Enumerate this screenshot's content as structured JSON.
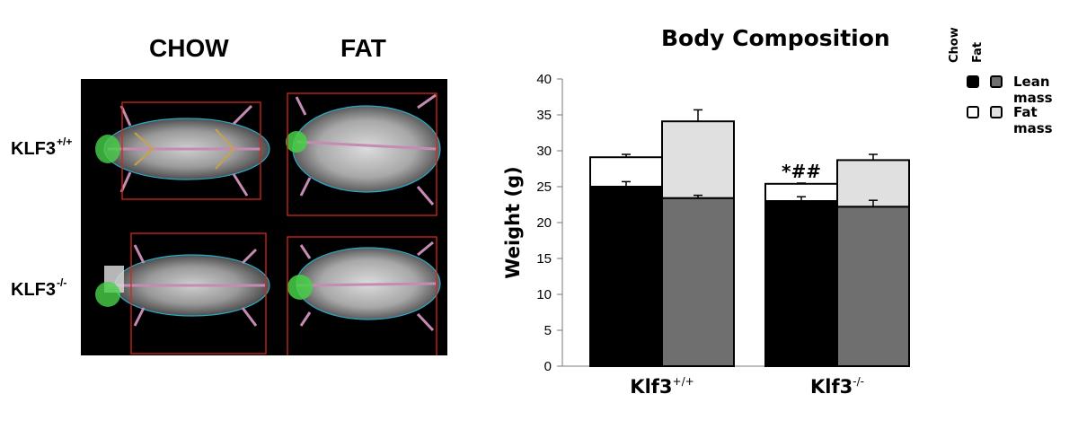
{
  "figure": {
    "col_labels": [
      "CHOW",
      "FAT"
    ],
    "row_labels": [
      {
        "base": "KLF3",
        "sup": "+/+"
      },
      {
        "base": "KLF3",
        "sup": "-/-"
      }
    ]
  },
  "colors": {
    "chow_lean": "#000000",
    "fat_lean": "#6f6f6f",
    "chow_fat": "#ffffff",
    "fat_fat": "#e0e0e0",
    "scan_bg": "#000000",
    "roi_box": "#d8261f",
    "outline": "#2aa9c7",
    "skeleton": "#c68bb3",
    "head_marker": "#47d147"
  },
  "legend": {
    "col_heads": [
      "Chow",
      "Fat"
    ],
    "rows": [
      "Lean mass",
      "Fat mass"
    ]
  },
  "chart_data": {
    "type": "bar",
    "title": "Body Composition",
    "ylabel": "Weight (g)",
    "xlabel": "",
    "ylim": [
      0,
      40
    ],
    "yticks": [
      0,
      5,
      10,
      15,
      20,
      25,
      30,
      35,
      40
    ],
    "stacked": true,
    "grid": false,
    "legend_position": "top-right",
    "groups": [
      {
        "label": "Klf3",
        "sup": "+/+"
      },
      {
        "label": "Klf3",
        "sup": "-/-"
      }
    ],
    "diets": [
      "Chow",
      "Fat"
    ],
    "lean_mass": [
      [
        25.0,
        23.4
      ],
      [
        23.0,
        22.2
      ]
    ],
    "lean_err": [
      [
        0.7,
        0.4
      ],
      [
        0.6,
        0.9
      ]
    ],
    "total_mass": [
      [
        29.1,
        34.1
      ],
      [
        25.4,
        28.7
      ]
    ],
    "total_err": [
      [
        0.4,
        1.6
      ],
      [
        0.1,
        0.8
      ]
    ],
    "annotations": [
      {
        "text": "*##",
        "group": 1,
        "diet": 0
      }
    ]
  }
}
